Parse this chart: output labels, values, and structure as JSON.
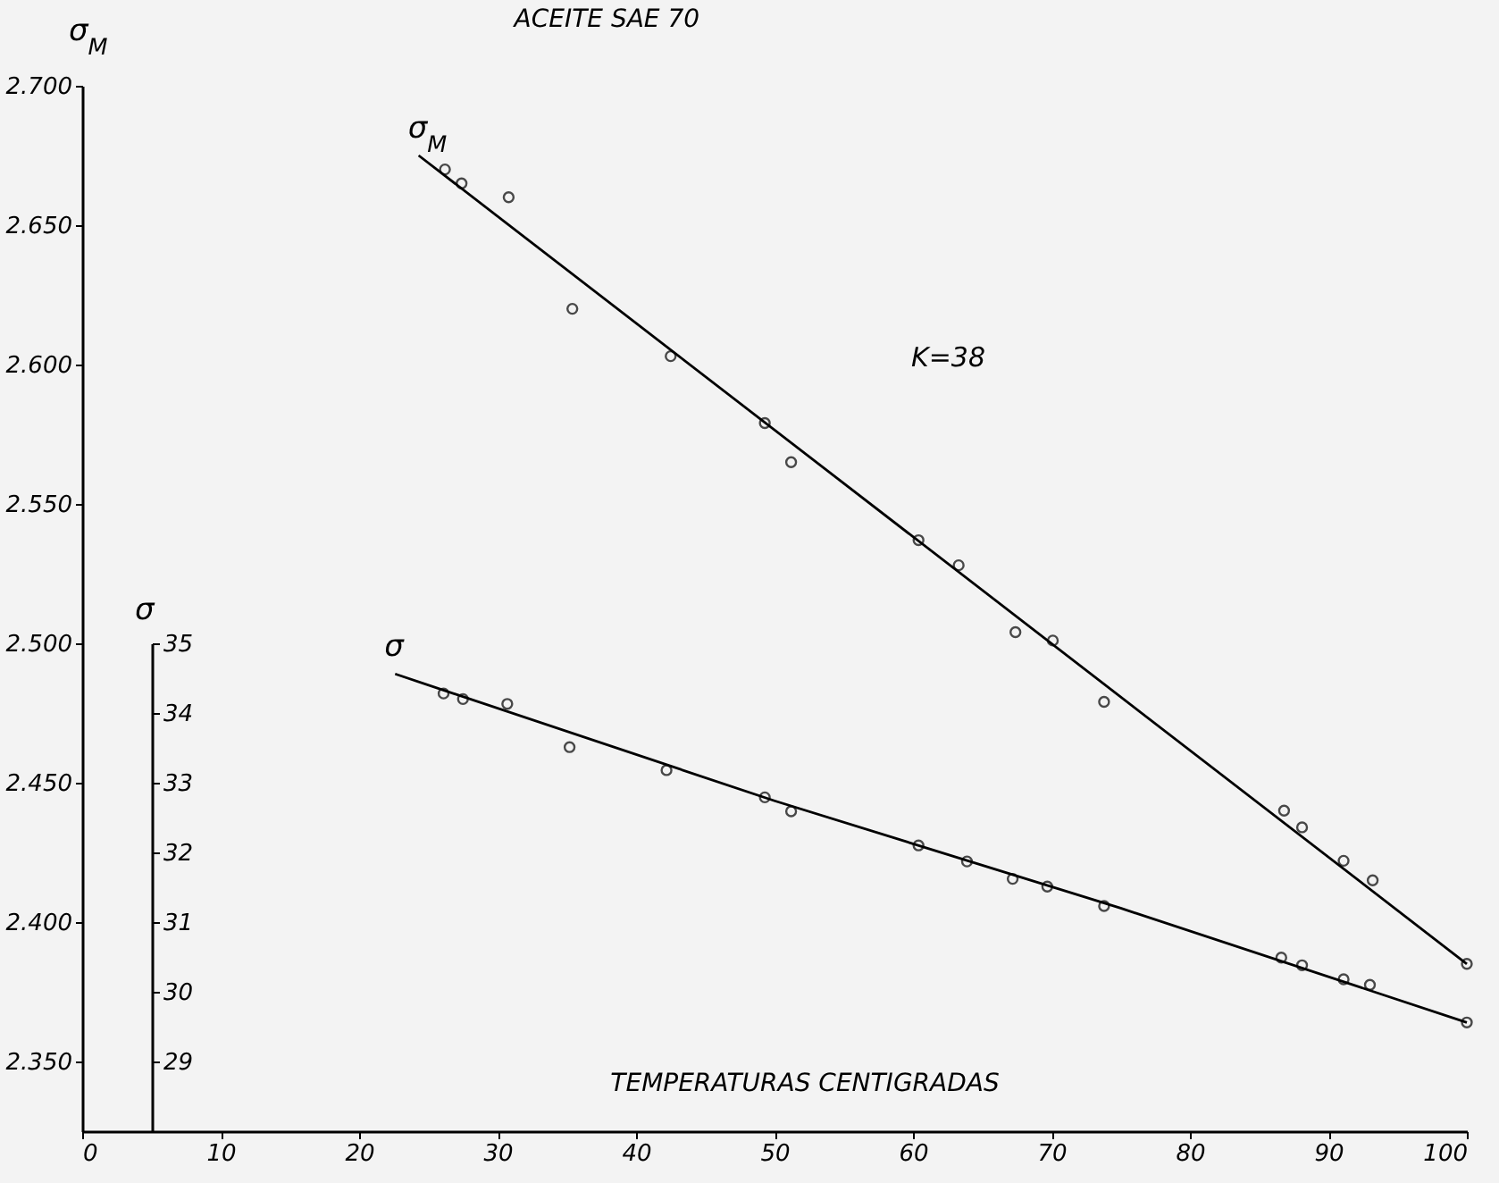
{
  "chart_data": {
    "type": "scatter",
    "title": "ACEITE SAE 70",
    "xlabel": "TEMPERATURAS CENTIGRADAS",
    "ylabel": "σ$_{M}$",
    "y2label": "σ",
    "xlim": [
      0,
      100
    ],
    "xticks": [
      0,
      10,
      20,
      30,
      40,
      50,
      60,
      70,
      80,
      90,
      100
    ],
    "ylim": [
      2.325,
      2.7
    ],
    "yticks": [
      {
        "value": 2.35,
        "label": "2.350"
      },
      {
        "value": 2.4,
        "label": "2.400"
      },
      {
        "value": 2.45,
        "label": "2.450"
      },
      {
        "value": 2.5,
        "label": "2.500"
      },
      {
        "value": 2.55,
        "label": "2.550"
      },
      {
        "value": 2.6,
        "label": "2.600"
      },
      {
        "value": 2.65,
        "label": "2.650"
      },
      {
        "value": 2.7,
        "label": "2.700"
      }
    ],
    "y2lim": [
      28,
      35
    ],
    "y2ticks": [
      29,
      30,
      31,
      32,
      33,
      34,
      35
    ],
    "grid": false,
    "series": [
      {
        "marker": "circle",
        "color": "#000000",
        "x": [
          26.2,
          27.4,
          30.8,
          35.4,
          42.5,
          49.3,
          51.2,
          60.4,
          63.3,
          67.4,
          70.1,
          73.8,
          86.8,
          88.1,
          91.1,
          93.2,
          100
        ],
        "values": [
          2.67,
          2.665,
          2.66,
          2.62,
          2.603,
          2.579,
          2.565,
          2.537,
          2.528,
          2.504,
          2.501,
          2.479,
          2.44,
          2.434,
          2.422,
          2.415,
          2.385
        ]
      },
      {
        "type": "line",
        "name": "σ$_{M}$",
        "marker": "none",
        "color": "#000000",
        "x": [
          24.3,
          100
        ],
        "values": [
          2.675,
          2.385
        ]
      },
      {
        "marker": "circle",
        "color": "#000000",
        "axis": "y2",
        "x": [
          26.1,
          27.5,
          30.7,
          35.2,
          42.2,
          49.3,
          51.2,
          60.4,
          63.9,
          67.2,
          69.7,
          73.8,
          86.6,
          88.1,
          91.1,
          93.0,
          100
        ],
        "values": [
          34.28,
          34.2,
          34.13,
          33.51,
          33.18,
          32.79,
          32.59,
          32.1,
          31.87,
          31.62,
          31.51,
          31.23,
          30.49,
          30.38,
          30.18,
          30.1,
          29.56
        ]
      },
      {
        "type": "line",
        "name": "σ",
        "marker": "none",
        "color": "#000000",
        "axis": "y2",
        "x": [
          22.6,
          50,
          75,
          100
        ],
        "values": [
          34.56,
          32.74,
          31.2,
          29.56
        ]
      }
    ],
    "annotations": [
      "K=38"
    ]
  }
}
